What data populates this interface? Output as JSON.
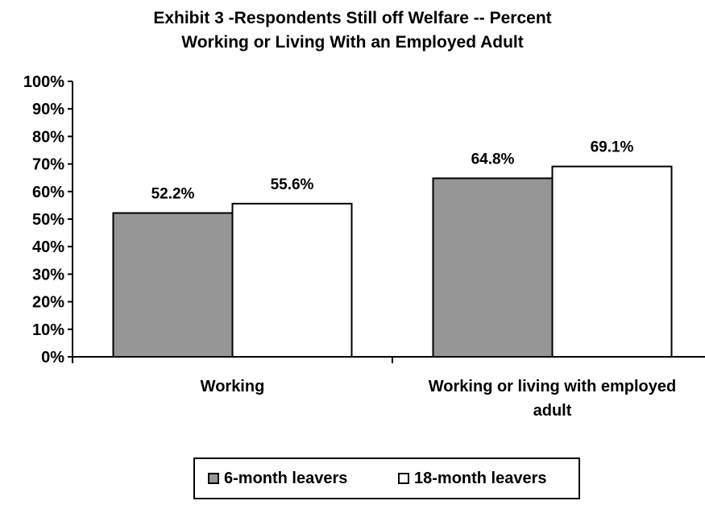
{
  "chart_data": {
    "type": "bar",
    "title_lines": [
      "Exhibit 3 -Respondents Still off Welfare -- Percent",
      "Working or Living With an Employed Adult"
    ],
    "categories": [
      [
        "Working"
      ],
      [
        "Working or living with employed",
        "adult"
      ]
    ],
    "series": [
      {
        "name": "6-month leavers",
        "values": [
          52.2,
          64.8
        ],
        "labels": [
          "52.2%",
          "64.8%"
        ],
        "color": "#969696"
      },
      {
        "name": "18-month leavers",
        "values": [
          55.6,
          69.1
        ],
        "labels": [
          "55.6%",
          "69.1%"
        ],
        "color": "#ffffff"
      }
    ],
    "ylim": [
      0,
      100
    ],
    "yticks": [
      "0%",
      "10%",
      "20%",
      "30%",
      "40%",
      "50%",
      "60%",
      "70%",
      "80%",
      "90%",
      "100%"
    ],
    "grid": false,
    "legend_position": "bottom"
  }
}
